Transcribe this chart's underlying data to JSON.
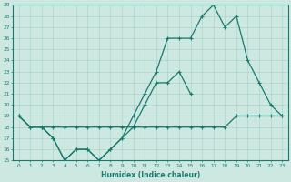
{
  "xlabel": "Humidex (Indice chaleur)",
  "background_color": "#cce8e0",
  "grid_color": "#aad4cc",
  "line_color": "#1a7a6e",
  "x_values": [
    0,
    1,
    2,
    3,
    4,
    5,
    6,
    7,
    8,
    9,
    10,
    11,
    12,
    13,
    14,
    15,
    16,
    17,
    18,
    19,
    20,
    21,
    22,
    23
  ],
  "line_top": [
    19,
    18,
    18,
    17,
    15,
    16,
    16,
    15,
    16,
    17,
    19,
    21,
    23,
    26,
    26,
    26,
    28,
    29,
    27,
    28,
    24,
    22,
    20,
    19
  ],
  "line_mid": [
    19,
    18,
    18,
    18,
    18,
    18,
    18,
    18,
    18,
    18,
    18,
    18,
    18,
    18,
    18,
    18,
    18,
    18,
    18,
    19,
    19,
    19,
    19,
    19
  ],
  "line_bot": [
    19,
    18,
    18,
    17,
    15,
    16,
    16,
    15,
    16,
    17,
    18,
    20,
    22,
    22,
    23,
    21,
    null,
    null,
    null,
    null,
    null,
    null,
    null,
    null
  ],
  "ylim": [
    15,
    29
  ],
  "xlim": [
    -0.5,
    23.5
  ],
  "yticks": [
    15,
    16,
    17,
    18,
    19,
    20,
    21,
    22,
    23,
    24,
    25,
    26,
    27,
    28,
    29
  ],
  "xticks": [
    0,
    1,
    2,
    3,
    4,
    5,
    6,
    7,
    8,
    9,
    10,
    11,
    12,
    13,
    14,
    15,
    16,
    17,
    18,
    19,
    20,
    21,
    22,
    23
  ]
}
